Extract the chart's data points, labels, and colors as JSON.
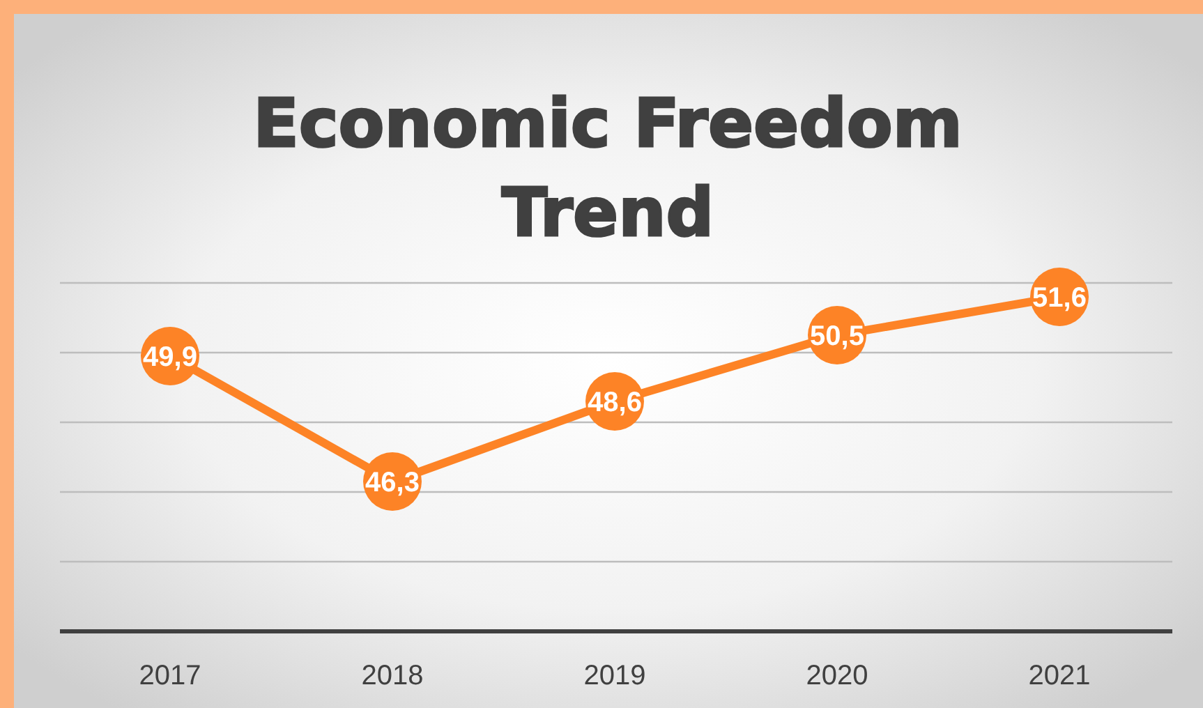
{
  "chart_data": {
    "type": "line",
    "title": "Economic Freedom Trend",
    "categories": [
      "2017",
      "2018",
      "2019",
      "2020",
      "2021"
    ],
    "series": [
      {
        "color": "#fd8326",
        "values": [
          49.9,
          46.3,
          48.6,
          50.5,
          51.6
        ],
        "value_labels": [
          "49,9",
          "46,3",
          "48,6",
          "50,5",
          "51,6"
        ]
      }
    ],
    "ylim": [
      42,
      52
    ],
    "yticks": [
      {
        "value": 42,
        "label": null
      },
      {
        "value": 44,
        "label": null
      },
      {
        "value": 46,
        "label": null
      },
      {
        "value": 48,
        "label": null
      },
      {
        "value": 50,
        "label": null
      },
      {
        "value": 52,
        "label": null
      }
    ],
    "tick_labels": "x",
    "grid": "y",
    "marker": "circle",
    "line_style": "solid"
  }
}
